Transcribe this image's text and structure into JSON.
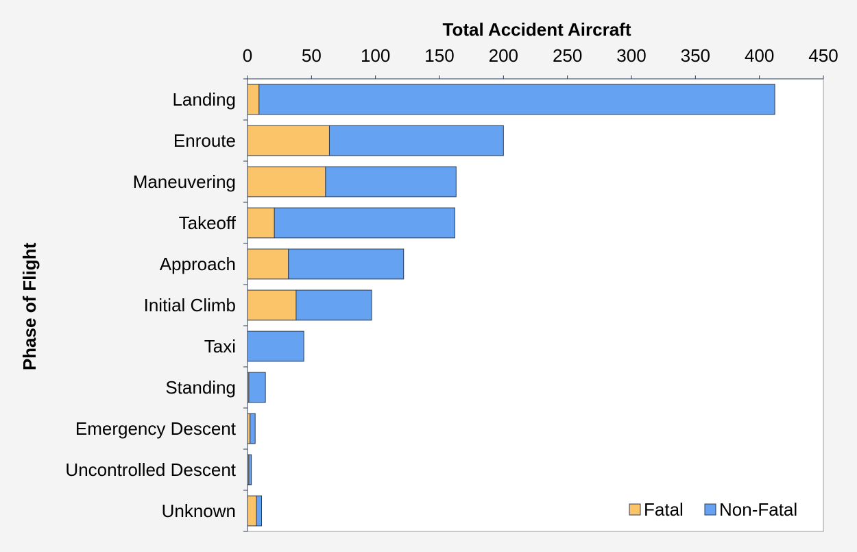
{
  "chart_data": {
    "type": "bar",
    "orientation": "horizontal",
    "stacked": true,
    "xlabel": "Total Accident Aircraft",
    "ylabel": "Phase of Flight",
    "xlim": [
      0,
      450
    ],
    "xticks": [
      0,
      50,
      100,
      150,
      200,
      250,
      300,
      350,
      400,
      450
    ],
    "x_axis_position": "top",
    "grid": false,
    "legend_position": "bottom-right",
    "categories": [
      "Landing",
      "Enroute",
      "Maneuvering",
      "Takeoff",
      "Approach",
      "Initial Climb",
      "Taxi",
      "Standing",
      "Emergency Descent",
      "Uncontrolled Descent",
      "Unknown"
    ],
    "series": [
      {
        "name": "Fatal",
        "color": "#fcc468",
        "values": [
          9,
          64,
          61,
          21,
          32,
          38,
          0,
          1,
          2,
          1,
          7
        ]
      },
      {
        "name": "Non-Fatal",
        "color": "#65a3f2",
        "values": [
          403,
          136,
          102,
          141,
          90,
          59,
          44,
          13,
          4,
          2,
          4
        ]
      }
    ]
  }
}
